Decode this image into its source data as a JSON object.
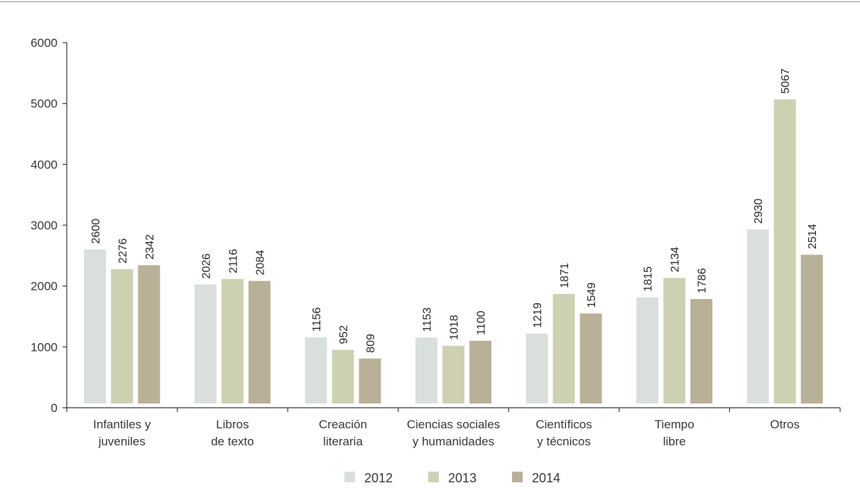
{
  "chart_data": {
    "type": "bar",
    "categories": [
      [
        "Infantiles y",
        "juveniles"
      ],
      [
        "Libros",
        "de texto"
      ],
      [
        "Creación",
        "literaria"
      ],
      [
        "Ciencias sociales",
        "y humanidades"
      ],
      [
        "Científicos",
        "y técnicos"
      ],
      [
        "Tiempo",
        "libre"
      ],
      [
        "Otros"
      ]
    ],
    "series": [
      {
        "name": "2012",
        "color": "#d9dfda",
        "values": [
          2600,
          2026,
          1156,
          1153,
          1219,
          1815,
          2930
        ]
      },
      {
        "name": "2013",
        "color": "#cdd1b2",
        "values": [
          2276,
          2116,
          952,
          1018,
          1871,
          2134,
          5067
        ]
      },
      {
        "name": "2014",
        "color": "#b8b097",
        "values": [
          2342,
          2084,
          809,
          1100,
          1549,
          1786,
          2514
        ]
      }
    ],
    "yticks": [
      "0",
      "1000",
      "2000",
      "3000",
      "4000",
      "5000",
      "6000"
    ],
    "ylim": [
      0,
      6000
    ],
    "title": "",
    "xlabel": "",
    "ylabel": "",
    "grid": false,
    "legend": "bottom-center"
  }
}
